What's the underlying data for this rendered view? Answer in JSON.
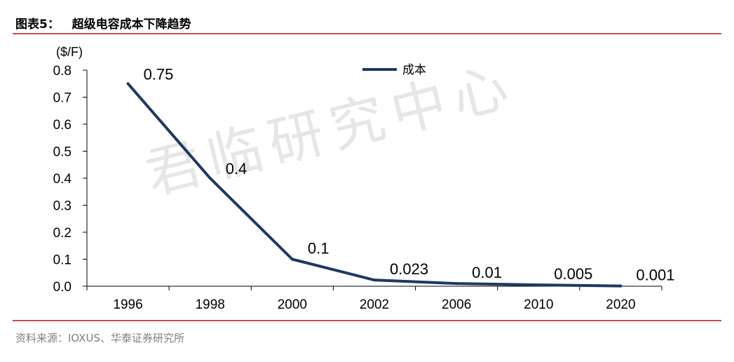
{
  "header": {
    "title": "图表5：   超级电容成本下降趋势"
  },
  "footer": {
    "source": "资料来源：IOXUS、华泰证券研究所"
  },
  "watermark": "君临研究中心",
  "colors": {
    "line": "#1f3864",
    "rule": "#c0504d",
    "axis": "#000000"
  },
  "chart_data": {
    "type": "line",
    "categories": [
      "1996",
      "1998",
      "2000",
      "2002",
      "2006",
      "2010",
      "2020"
    ],
    "series": [
      {
        "name": "成本",
        "values": [
          0.75,
          0.4,
          0.1,
          0.023,
          0.01,
          0.005,
          0.001
        ]
      }
    ],
    "data_labels": [
      "0.75",
      "0.4",
      "0.1",
      "0.023",
      "0.01",
      "0.005",
      "0.001"
    ],
    "y_unit": "($/F)",
    "ylim": [
      0,
      0.8
    ],
    "yticks": [
      "0.0",
      "0.1",
      "0.2",
      "0.3",
      "0.4",
      "0.5",
      "0.6",
      "0.7",
      "0.8"
    ],
    "legend_position": "top-center",
    "grid": false
  }
}
